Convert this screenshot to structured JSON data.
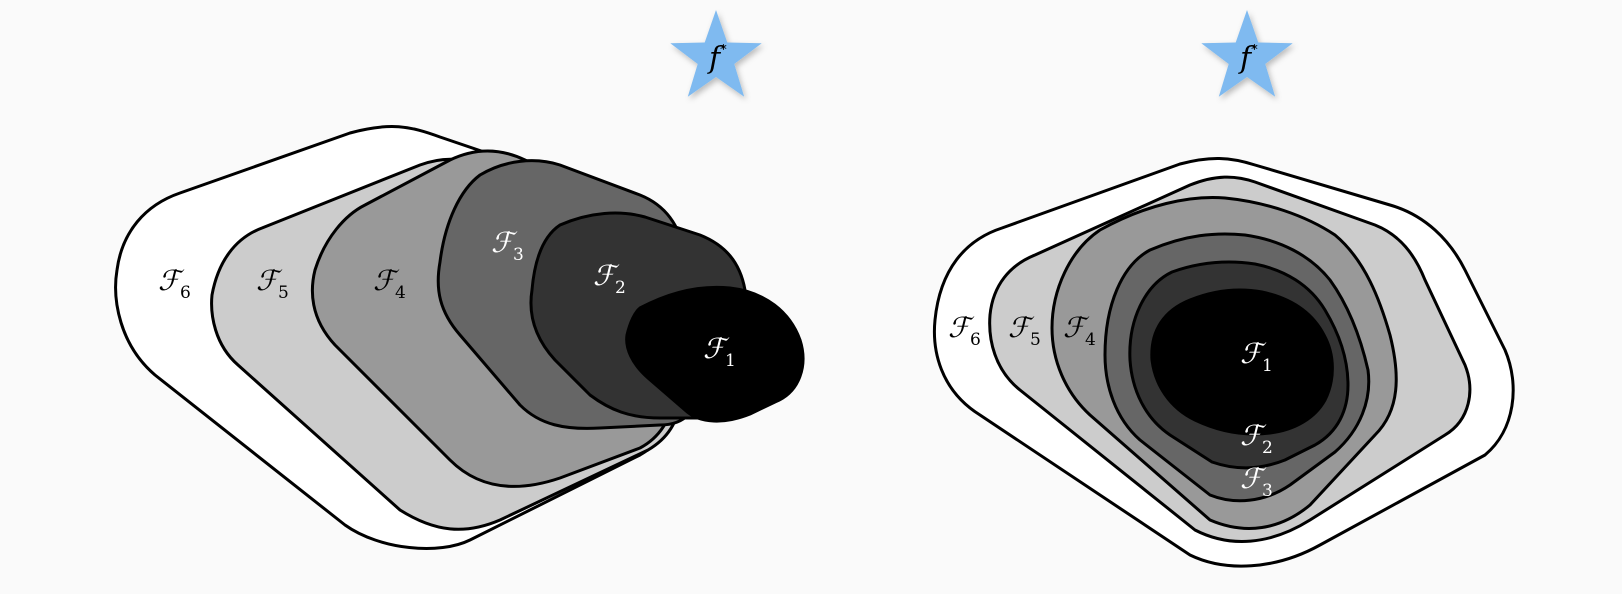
{
  "colors": {
    "background": "#fafafa",
    "star_fill": "#7fbaf0",
    "f6": "#ffffff",
    "f5": "#cccccc",
    "f4": "#999999",
    "f3": "#666666",
    "f2": "#333333",
    "f1": "#000000"
  },
  "left_diagram": {
    "star_label": "f",
    "star_sup": "*",
    "sets": [
      {
        "letter": "ℱ",
        "index": "6"
      },
      {
        "letter": "ℱ",
        "index": "5"
      },
      {
        "letter": "ℱ",
        "index": "4"
      },
      {
        "letter": "ℱ",
        "index": "3"
      },
      {
        "letter": "ℱ",
        "index": "2"
      },
      {
        "letter": "ℱ",
        "index": "1"
      }
    ]
  },
  "right_diagram": {
    "star_label": "f",
    "star_sup": "*",
    "sets": [
      {
        "letter": "ℱ",
        "index": "6"
      },
      {
        "letter": "ℱ",
        "index": "5"
      },
      {
        "letter": "ℱ",
        "index": "4"
      },
      {
        "letter": "ℱ",
        "index": "3"
      },
      {
        "letter": "ℱ",
        "index": "2"
      },
      {
        "letter": "ℱ",
        "index": "1"
      }
    ]
  }
}
